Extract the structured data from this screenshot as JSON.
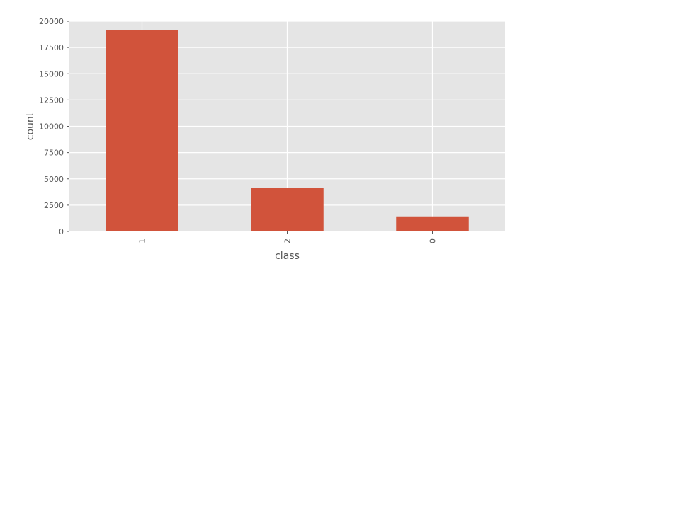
{
  "chart_data": {
    "type": "bar",
    "categories": [
      "1",
      "2",
      "0"
    ],
    "values": [
      19190,
      4163,
      1430
    ],
    "xlabel": "class",
    "ylabel": "count",
    "ylim": [
      0,
      20000
    ],
    "yticks": [
      0,
      2500,
      5000,
      7500,
      10000,
      12500,
      15000,
      17500,
      20000
    ],
    "grid": true,
    "bar_color": "#d1533b",
    "background_color": "#e5e5e5",
    "grid_color": "#ffffff",
    "text_color": "#555555"
  }
}
